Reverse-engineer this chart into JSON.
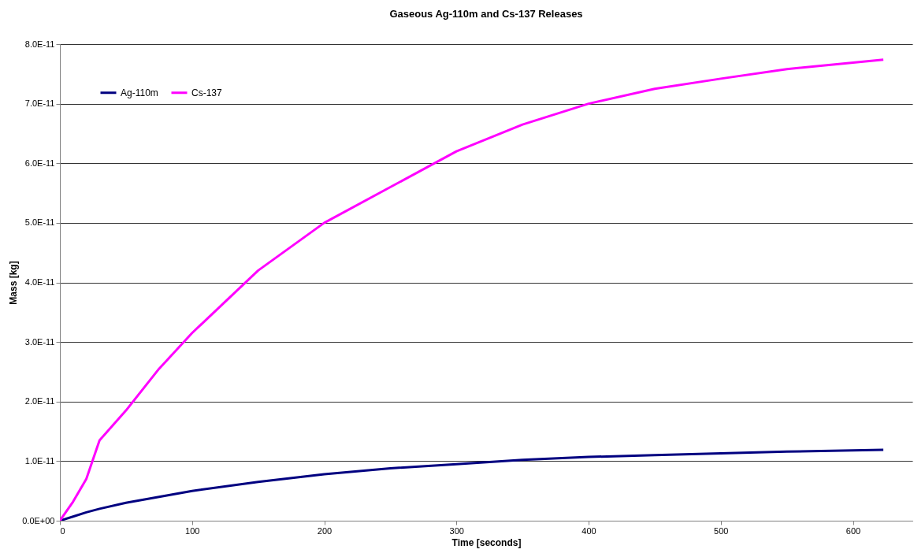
{
  "chart_data": {
    "type": "line",
    "title": "Gaseous Ag-110m and Cs-137 Releases",
    "xlabel": "Time [seconds]",
    "ylabel": "Mass [kg]",
    "xlim": [
      0,
      645
    ],
    "xticks": [
      0,
      100,
      200,
      300,
      400,
      500,
      600
    ],
    "ylim": [
      0,
      8e-11
    ],
    "yticks": [
      {
        "value": 0,
        "label": "0.0E+00"
      },
      {
        "value": 1e-11,
        "label": "1.0E-11"
      },
      {
        "value": 2e-11,
        "label": "2.0E-11"
      },
      {
        "value": 3e-11,
        "label": "3.0E-11"
      },
      {
        "value": 4e-11,
        "label": "4.0E-11"
      },
      {
        "value": 5e-11,
        "label": "5.0E-11"
      },
      {
        "value": 6e-11,
        "label": "6.0E-11"
      },
      {
        "value": 7e-11,
        "label": "7.0E-11"
      },
      {
        "value": 8e-11,
        "label": "8.0E-11"
      }
    ],
    "grid": "y",
    "legend": "top left",
    "marker": "none",
    "line_style": "solid",
    "x": [
      0,
      10,
      20,
      30,
      50,
      75,
      100,
      150,
      200,
      250,
      300,
      350,
      400,
      450,
      500,
      550,
      623
    ],
    "series": [
      {
        "name": "Ag-110m",
        "color": "#000080",
        "values": [
          0,
          7e-13,
          1.4e-12,
          2e-12,
          3e-12,
          4e-12,
          5e-12,
          6.5e-12,
          7.8e-12,
          8.8e-12,
          9.5e-12,
          1.02e-11,
          1.07e-11,
          1.1e-11,
          1.13e-11,
          1.16e-11,
          1.19e-11
        ]
      },
      {
        "name": "Cs-137",
        "color": "#ff00ff",
        "values": [
          0,
          3.2e-12,
          7e-12,
          1.35e-11,
          1.85e-11,
          2.55e-11,
          3.15e-11,
          4.2e-11,
          5e-11,
          5.6e-11,
          6.2e-11,
          6.65e-11,
          7e-11,
          7.25e-11,
          7.42e-11,
          7.58e-11,
          7.74e-11
        ]
      }
    ]
  }
}
